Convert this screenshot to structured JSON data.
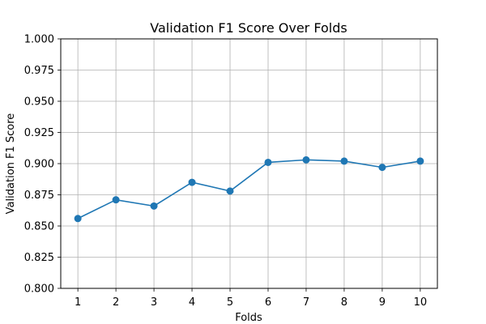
{
  "chart_data": {
    "type": "line",
    "title": "Validation F1 Score Over Folds",
    "xlabel": "Folds",
    "ylabel": "Validation F1 Score",
    "x": [
      1,
      2,
      3,
      4,
      5,
      6,
      7,
      8,
      9,
      10
    ],
    "x_tick_labels": [
      "1",
      "2",
      "3",
      "4",
      "5",
      "6",
      "7",
      "8",
      "9",
      "10"
    ],
    "y_ticks": [
      0.8,
      0.825,
      0.85,
      0.875,
      0.9,
      0.925,
      0.95,
      0.975,
      1.0
    ],
    "y_tick_labels": [
      "0.800",
      "0.825",
      "0.850",
      "0.875",
      "0.900",
      "0.925",
      "0.950",
      "0.975",
      "1.000"
    ],
    "ylim": [
      0.8,
      1.0
    ],
    "xlim": [
      0.55,
      10.45
    ],
    "grid": true,
    "series": [
      {
        "values": [
          0.856,
          0.871,
          0.866,
          0.885,
          0.878,
          0.901,
          0.903,
          0.902,
          0.897,
          0.902
        ],
        "color": "#1f77b4",
        "marker": "circle"
      }
    ]
  }
}
